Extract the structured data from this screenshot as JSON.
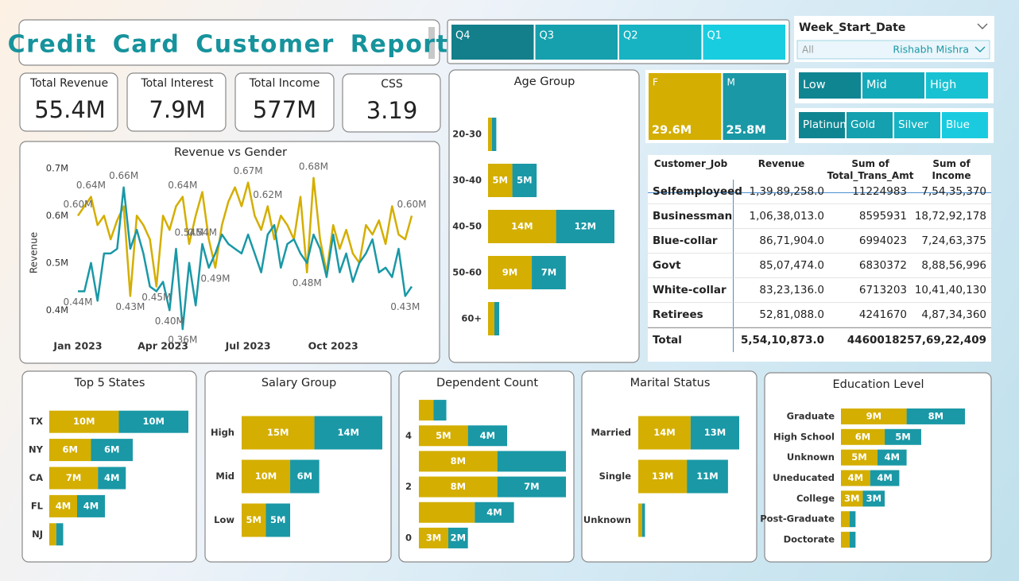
{
  "header": {
    "title": "Credit Card Customer Report"
  },
  "kpis": [
    {
      "label": "Total Revenue",
      "value": "55.4M"
    },
    {
      "label": "Total Interest",
      "value": "7.9M"
    },
    {
      "label": "Total Income",
      "value": "577M"
    },
    {
      "label": "CSS",
      "value": "3.19"
    }
  ],
  "slicers": {
    "quarter": [
      "Q4",
      "Q3",
      "Q2",
      "Q1"
    ],
    "week_start_date": {
      "label": "Week_Start_Date",
      "value": "All",
      "user": "Rishabh Mishra"
    },
    "salary": [
      "Low",
      "Mid",
      "High"
    ],
    "card": [
      "Platinum",
      "Gold",
      "Silver",
      "Blue"
    ]
  },
  "table": {
    "columns": [
      "Customer_Job",
      "Revenue",
      "Sum of Total_Trans_Amt",
      "Sum of Income"
    ],
    "rows": [
      [
        "Selfemployeed",
        "1,39,89,258.0",
        "11224983",
        "7,54,35,370"
      ],
      [
        "Businessman",
        "1,06,38,013.0",
        "8595931",
        "18,72,92,178"
      ],
      [
        "Blue-collar",
        "86,71,904.0",
        "6994023",
        "7,24,63,375"
      ],
      [
        "Govt",
        "85,07,474.0",
        "6830372",
        "8,88,56,996"
      ],
      [
        "White-collar",
        "83,23,136.0",
        "6713203",
        "10,41,40,130"
      ],
      [
        "Retirees",
        "52,81,088.0",
        "4241670",
        "4,87,34,360"
      ]
    ],
    "total": [
      "Total",
      "5,54,10,873.0",
      "44600182",
      "57,69,22,409"
    ]
  },
  "chart_data": [
    {
      "type": "line",
      "title": "Revenue vs Gender",
      "y_label": "Revenue",
      "x": [
        1,
        2,
        3,
        4,
        5,
        6,
        7,
        8,
        9,
        10,
        11,
        12,
        13,
        14,
        15,
        16,
        17,
        18,
        19,
        20,
        21,
        22,
        23,
        24,
        25,
        26,
        27,
        28,
        29,
        30,
        31,
        32,
        33,
        34,
        35,
        36,
        37,
        38,
        39,
        40,
        41,
        42,
        43,
        44,
        45,
        46,
        47,
        48,
        49,
        50,
        51,
        52
      ],
      "xlim": [
        1,
        52
      ],
      "xticks": [
        {
          "value": 1,
          "label": "Jan 2023"
        },
        {
          "value": 14,
          "label": "Apr 2023"
        },
        {
          "value": 27,
          "label": "Jul 2023"
        },
        {
          "value": 40,
          "label": "Oct 2023"
        }
      ],
      "ylim": [
        0.35,
        0.72
      ],
      "yticks": [
        {
          "value": 0.4,
          "label": "0.4M"
        },
        {
          "value": 0.5,
          "label": "0.5M"
        },
        {
          "value": 0.6,
          "label": "0.6M"
        },
        {
          "value": 0.7,
          "label": "0.7M"
        }
      ],
      "series": [
        {
          "color": "#d4ae00",
          "values": [
            0.6,
            0.62,
            0.64,
            0.58,
            0.6,
            0.55,
            0.59,
            0.62,
            0.43,
            0.6,
            0.58,
            0.55,
            0.45,
            0.6,
            0.57,
            0.62,
            0.64,
            0.54,
            0.6,
            0.65,
            0.55,
            0.49,
            0.58,
            0.63,
            0.66,
            0.62,
            0.67,
            0.6,
            0.57,
            0.62,
            0.55,
            0.6,
            0.58,
            0.55,
            0.64,
            0.48,
            0.68,
            0.55,
            0.48,
            0.58,
            0.53,
            0.57,
            0.52,
            0.5,
            0.58,
            0.56,
            0.59,
            0.54,
            0.62,
            0.56,
            0.55,
            0.6
          ],
          "value_labels": [
            "0.60M",
            null,
            "0.64M",
            null,
            null,
            null,
            null,
            null,
            "0.43M",
            null,
            null,
            null,
            "0.45M",
            null,
            null,
            null,
            "0.64M",
            "0.54M",
            null,
            null,
            null,
            "0.49M",
            null,
            null,
            null,
            null,
            "0.67M",
            null,
            null,
            "0.62M",
            null,
            null,
            null,
            null,
            null,
            "0.48M",
            "0.68M",
            null,
            null,
            null,
            null,
            null,
            null,
            null,
            null,
            null,
            null,
            null,
            null,
            null,
            null,
            "0.60M"
          ]
        },
        {
          "color": "#1a98a6",
          "values": [
            0.44,
            0.44,
            0.5,
            0.42,
            0.52,
            0.52,
            0.53,
            0.66,
            0.53,
            0.57,
            0.52,
            0.45,
            0.44,
            0.46,
            0.4,
            0.53,
            0.36,
            0.5,
            0.41,
            0.54,
            0.49,
            0.52,
            0.56,
            0.54,
            0.53,
            0.52,
            0.56,
            0.52,
            0.48,
            0.56,
            0.58,
            0.49,
            0.54,
            0.55,
            0.52,
            0.5,
            0.56,
            0.53,
            0.47,
            0.56,
            0.48,
            0.52,
            0.46,
            0.5,
            0.52,
            0.55,
            0.48,
            0.49,
            0.47,
            0.53,
            0.43,
            0.45
          ],
          "value_labels": [
            "0.44M",
            null,
            null,
            null,
            null,
            null,
            null,
            "0.66M",
            null,
            null,
            null,
            null,
            null,
            null,
            "0.40M",
            null,
            "0.36M",
            null,
            null,
            "0.54M",
            null,
            null,
            null,
            null,
            null,
            null,
            null,
            null,
            null,
            null,
            null,
            null,
            null,
            null,
            null,
            null,
            null,
            null,
            null,
            null,
            null,
            null,
            null,
            null,
            null,
            null,
            null,
            null,
            null,
            null,
            "0.43M",
            null
          ]
        }
      ]
    },
    {
      "type": "bar",
      "orientation": "horizontal",
      "stacked": true,
      "title": "Age Group",
      "categories": [
        "20-30",
        "30-40",
        "40-50",
        "50-60",
        "60+"
      ],
      "series": [
        {
          "color": "#d4ae00",
          "values": [
            0.8,
            5,
            14,
            9,
            1.3
          ],
          "value_labels": [
            null,
            "5M",
            "14M",
            "9M",
            null
          ]
        },
        {
          "color": "#1a98a6",
          "values": [
            0.9,
            5,
            12,
            7,
            1
          ],
          "value_labels": [
            null,
            "5M",
            "12M",
            "7M",
            null
          ]
        }
      ]
    },
    {
      "type": "treemap",
      "categories": [
        "F",
        "M"
      ],
      "values": [
        29.6,
        25.8
      ],
      "value_labels": [
        "29.6M",
        "25.8M"
      ],
      "colors": [
        "#d4ae00",
        "#1a98a6"
      ]
    },
    {
      "type": "bar",
      "orientation": "horizontal",
      "stacked": true,
      "title": "Top 5 States",
      "categories": [
        "TX",
        "NY",
        "CA",
        "FL",
        "NJ"
      ],
      "series": [
        {
          "color": "#d4ae00",
          "values": [
            10,
            6,
            7,
            4,
            1
          ],
          "value_labels": [
            "10M",
            "6M",
            "7M",
            "4M",
            null
          ]
        },
        {
          "color": "#1a98a6",
          "values": [
            10,
            6,
            4,
            4,
            1
          ],
          "value_labels": [
            "10M",
            "6M",
            "4M",
            "4M",
            null
          ]
        }
      ]
    },
    {
      "type": "bar",
      "orientation": "horizontal",
      "stacked": true,
      "title": "Salary Group",
      "categories": [
        "High",
        "Mid",
        "Low"
      ],
      "series": [
        {
          "color": "#d4ae00",
          "values": [
            15,
            10,
            5
          ],
          "value_labels": [
            "15M",
            "10M",
            "5M"
          ]
        },
        {
          "color": "#1a98a6",
          "values": [
            14,
            6,
            5
          ],
          "value_labels": [
            "14M",
            "6M",
            "5M"
          ]
        }
      ]
    },
    {
      "type": "bar",
      "orientation": "horizontal",
      "stacked": true,
      "title": "Dependent Count",
      "categories": [
        null,
        "4",
        null,
        "2",
        null,
        "0"
      ],
      "series": [
        {
          "color": "#d4ae00",
          "values": [
            1.5,
            5,
            8,
            8,
            5.7,
            3
          ],
          "value_labels": [
            null,
            "5M",
            "8M",
            "8M",
            null,
            "3M"
          ]
        },
        {
          "color": "#1a98a6",
          "values": [
            1.3,
            4,
            7,
            7,
            4,
            2
          ],
          "value_labels": [
            null,
            "4M",
            null,
            "7M",
            "4M",
            "2M"
          ]
        }
      ]
    },
    {
      "type": "bar",
      "orientation": "horizontal",
      "stacked": true,
      "title": "Marital Status",
      "categories": [
        "Married",
        "Single",
        "Unknown"
      ],
      "series": [
        {
          "color": "#d4ae00",
          "values": [
            14,
            13,
            1
          ],
          "value_labels": [
            "14M",
            "13M",
            null
          ]
        },
        {
          "color": "#1a98a6",
          "values": [
            13,
            11,
            0.8
          ],
          "value_labels": [
            "13M",
            "11M",
            null
          ]
        }
      ]
    },
    {
      "type": "bar",
      "orientation": "horizontal",
      "stacked": true,
      "title": "Education Level",
      "categories": [
        "Graduate",
        "High School",
        "Unknown",
        "Uneducated",
        "College",
        "Post-Graduate",
        "Doctorate"
      ],
      "series": [
        {
          "color": "#d4ae00",
          "values": [
            9,
            6,
            5,
            4,
            3,
            1.2,
            1.2
          ],
          "value_labels": [
            "9M",
            "6M",
            "5M",
            "4M",
            "3M",
            null,
            null
          ]
        },
        {
          "color": "#1a98a6",
          "values": [
            8,
            5,
            4,
            4,
            3,
            0.8,
            0.8
          ],
          "value_labels": [
            "8M",
            "5M",
            "4M",
            "4M",
            "3M",
            null,
            null
          ]
        }
      ]
    }
  ]
}
